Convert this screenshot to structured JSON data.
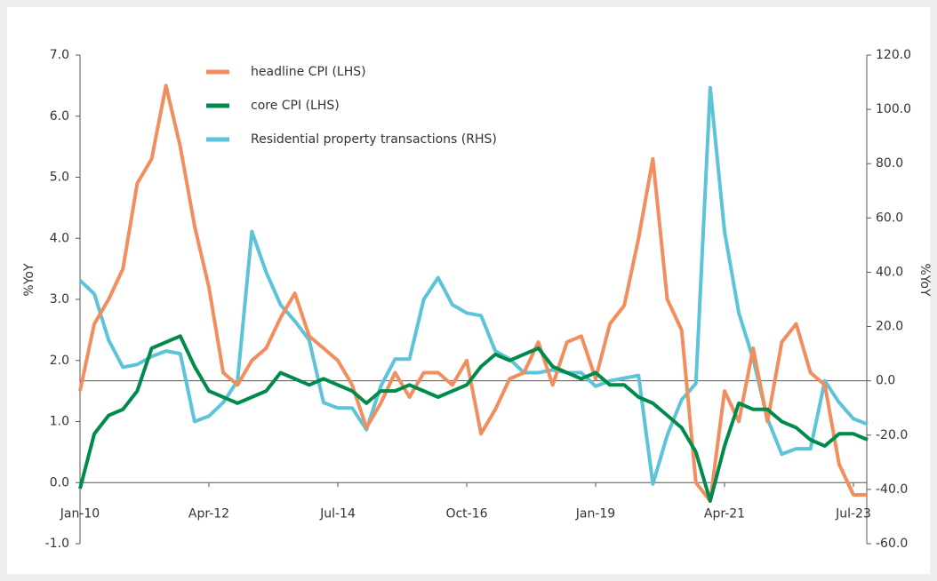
{
  "chart_data": {
    "type": "line",
    "categories": [
      "Jan-10",
      null,
      null,
      null,
      null,
      null,
      null,
      null,
      null,
      "Apr-12",
      null,
      null,
      null,
      null,
      null,
      null,
      null,
      null,
      "Jul-14",
      null,
      null,
      null,
      null,
      null,
      null,
      null,
      null,
      "Oct-16",
      null,
      null,
      null,
      null,
      null,
      null,
      null,
      null,
      "Jan-19",
      null,
      null,
      null,
      null,
      null,
      null,
      null,
      null,
      "Apr-21",
      null,
      null,
      null,
      null,
      null,
      null,
      null,
      null,
      "Jul-23",
      null
    ],
    "series": [
      {
        "name": "headline CPI (LHS)",
        "color": "#f28d5e",
        "axis": "y",
        "values": [
          1.5,
          2.6,
          3.0,
          3.5,
          4.9,
          5.3,
          6.5,
          5.5,
          4.2,
          3.2,
          1.8,
          1.6,
          2.0,
          2.2,
          2.7,
          3.1,
          2.4,
          2.2,
          2.0,
          1.6,
          0.9,
          1.3,
          1.8,
          1.4,
          1.8,
          1.8,
          1.6,
          2.0,
          0.8,
          1.2,
          1.7,
          1.8,
          2.3,
          1.6,
          2.3,
          2.4,
          1.7,
          2.6,
          2.9,
          4.0,
          5.3,
          3.0,
          2.5,
          0.0,
          -0.3,
          1.5,
          1.0,
          2.2,
          1.0,
          2.3,
          2.6,
          1.8,
          1.6,
          0.3,
          -0.2,
          -0.2
        ]
      },
      {
        "name": "core CPI (LHS)",
        "color": "#008a4b",
        "axis": "y",
        "values": [
          -0.1,
          0.8,
          1.1,
          1.2,
          1.5,
          2.2,
          2.3,
          2.4,
          1.9,
          1.5,
          1.4,
          1.3,
          1.4,
          1.5,
          1.8,
          1.7,
          1.6,
          1.7,
          1.6,
          1.5,
          1.3,
          1.5,
          1.5,
          1.6,
          1.5,
          1.4,
          1.5,
          1.6,
          1.9,
          2.1,
          2.0,
          2.1,
          2.2,
          1.9,
          1.8,
          1.7,
          1.8,
          1.6,
          1.6,
          1.4,
          1.3,
          1.1,
          0.9,
          0.5,
          -0.3,
          0.6,
          1.3,
          1.2,
          1.2,
          1.0,
          0.9,
          0.7,
          0.6,
          0.8,
          0.8,
          0.7
        ]
      },
      {
        "name": "Residential property transactions (RHS)",
        "color": "#5cc3d9",
        "axis": "y2",
        "values": [
          37,
          32,
          15,
          5,
          6,
          9,
          11,
          10,
          -15,
          -13,
          -8,
          0,
          55,
          40,
          28,
          22,
          15,
          -8,
          -10,
          -10,
          -18,
          -2,
          8,
          8,
          30,
          38,
          28,
          25,
          24,
          11,
          8,
          3,
          3,
          4,
          3,
          3,
          -2,
          0,
          1,
          2,
          -38,
          -20,
          -7,
          -1,
          108,
          55,
          25,
          8,
          -14,
          -27,
          -25,
          -25,
          0,
          -8,
          -14,
          -16
        ]
      }
    ],
    "ylabel": "%YoY",
    "y2label": "%YoY",
    "ylim": [
      -1,
      7
    ],
    "yticks": [
      {
        "value": -1,
        "label": "-1.0"
      },
      {
        "value": 0,
        "label": "0.0"
      },
      {
        "value": 1,
        "label": "1.0"
      },
      {
        "value": 2,
        "label": "2.0"
      },
      {
        "value": 3,
        "label": "3.0"
      },
      {
        "value": 4,
        "label": "4.0"
      },
      {
        "value": 5,
        "label": "5.0"
      },
      {
        "value": 6,
        "label": "6.0"
      },
      {
        "value": 7,
        "label": "7.0"
      }
    ],
    "y2lim": [
      -60,
      120
    ],
    "y2ticks": [
      {
        "value": -60,
        "label": "-60.0"
      },
      {
        "value": -40,
        "label": "-40.0"
      },
      {
        "value": -20,
        "label": "-20.0"
      },
      {
        "value": 0,
        "label": "0.0"
      },
      {
        "value": 20,
        "label": "20.0"
      },
      {
        "value": 40,
        "label": "40.0"
      },
      {
        "value": 60,
        "label": "60.0"
      },
      {
        "value": 80,
        "label": "80.0"
      },
      {
        "value": 100,
        "label": "100.0"
      },
      {
        "value": 120,
        "label": "120.0"
      }
    ],
    "legend": "top-left"
  }
}
